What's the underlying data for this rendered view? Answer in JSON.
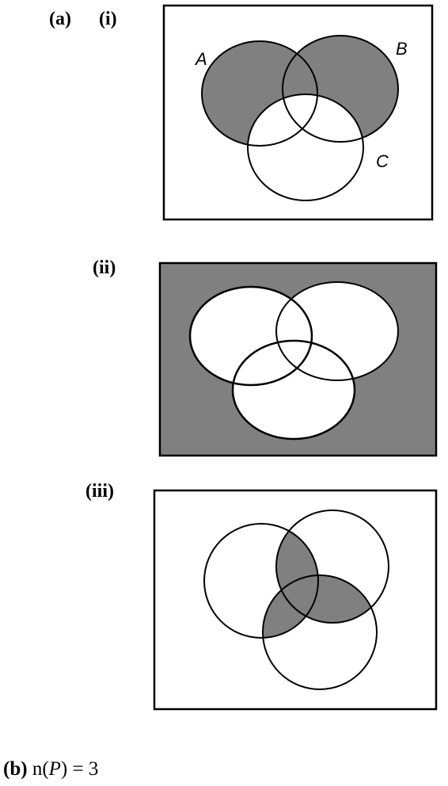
{
  "part_a": {
    "label": "(a)",
    "sub_i": "(i)",
    "sub_ii": "(ii)",
    "sub_iii": "(iii)"
  },
  "set_labels": {
    "a": "A",
    "b": "B",
    "c": "C"
  },
  "part_b": {
    "label": "(b)",
    "fn": "n(",
    "var": "P",
    "rest": ") = 3"
  },
  "colors": {
    "shade": "#808080",
    "line": "#000000",
    "background": "#ffffff"
  }
}
